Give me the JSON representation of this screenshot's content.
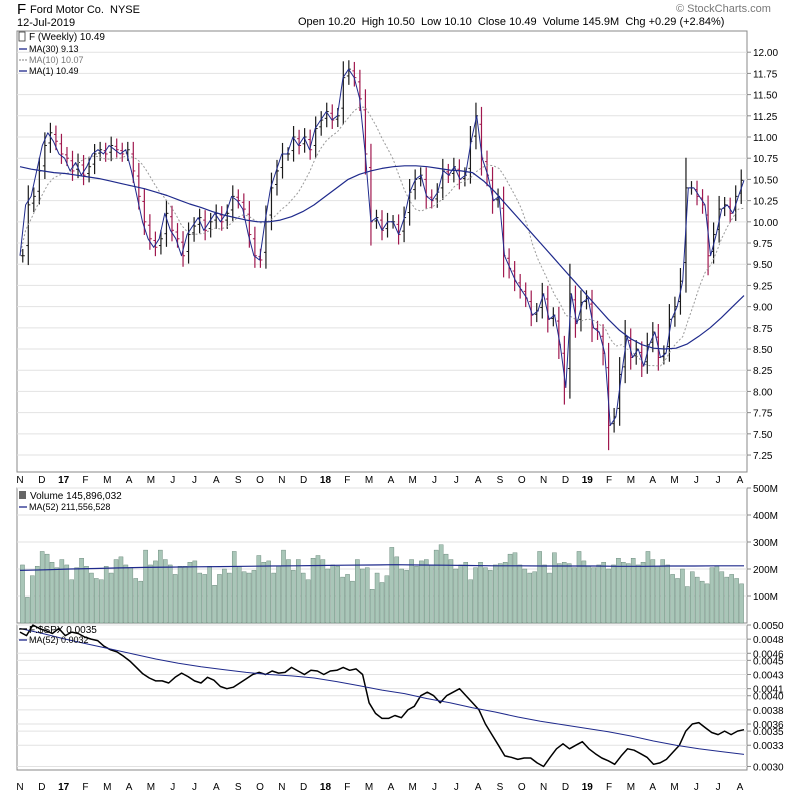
{
  "header": {
    "symbol": "F",
    "company": "Ford Motor Co.",
    "exchange": "NYSE",
    "date": "12-Jul-2019",
    "watermark": "© StockCharts.com",
    "open_label": "Open",
    "open": "10.20",
    "high_label": "High",
    "high": "10.50",
    "low_label": "Low",
    "low": "10.10",
    "close_label": "Close",
    "close": "10.49",
    "volume_label": "Volume",
    "volume": "145.9M",
    "chg_label": "Chg",
    "chg": "+0.29 (+2.84%)"
  },
  "colors": {
    "up": "#1a1a1a",
    "down": "#a0184e",
    "ma": "#1f2a8c",
    "ma_dotted": "#9a9a9a",
    "volume": "#a9c6b8",
    "volume_edge": "#5c7d6e",
    "grid": "#e2e2e2",
    "ratio": "#000000"
  },
  "chart_data": [
    {
      "type": "ohlc",
      "title": "F (Weekly) 10.49",
      "legend": [
        {
          "label": "MA(30) 9.13",
          "style": "solid"
        },
        {
          "label": "MA(10) 10.07",
          "style": "dotted"
        },
        {
          "label": "MA(1) 10.49",
          "style": "solid"
        }
      ],
      "ylim": [
        7.05,
        12.25
      ],
      "y_ticks": [
        "12.00",
        "11.75",
        "11.50",
        "11.25",
        "11.00",
        "10.75",
        "10.50",
        "10.25",
        "10.00",
        "9.75",
        "9.50",
        "9.25",
        "9.00",
        "8.75",
        "8.50",
        "8.25",
        "8.00",
        "7.75",
        "7.50",
        "7.25"
      ],
      "x_labels": [
        "N",
        "D",
        "17",
        "F",
        "M",
        "A",
        "M",
        "J",
        "J",
        "A",
        "S",
        "O",
        "N",
        "D",
        "18",
        "F",
        "M",
        "A",
        "M",
        "J",
        "J",
        "A",
        "S",
        "O",
        "N",
        "D",
        "19",
        "F",
        "M",
        "A",
        "M",
        "J",
        "J",
        "A"
      ],
      "ma1_weekly_close": [
        9.6,
        10.2,
        10.3,
        10.6,
        10.9,
        11.05,
        10.95,
        10.8,
        10.75,
        10.6,
        10.7,
        10.55,
        10.65,
        10.8,
        10.85,
        10.8,
        10.9,
        10.85,
        10.8,
        10.85,
        10.6,
        10.3,
        10.0,
        9.8,
        9.7,
        9.8,
        10.1,
        9.9,
        9.8,
        9.6,
        9.85,
        9.95,
        10.05,
        9.9,
        10.0,
        10.1,
        10.0,
        10.1,
        10.3,
        10.25,
        10.15,
        9.85,
        9.6,
        9.55,
        10.0,
        10.4,
        10.6,
        10.8,
        10.8,
        11.0,
        10.9,
        11.0,
        10.85,
        11.1,
        11.2,
        11.3,
        11.2,
        11.25,
        11.7,
        11.8,
        11.7,
        11.45,
        10.8,
        10.0,
        10.05,
        9.9,
        10.0,
        10.0,
        9.85,
        10.05,
        10.35,
        10.5,
        10.55,
        10.3,
        10.25,
        10.35,
        10.6,
        10.55,
        10.65,
        10.5,
        10.55,
        10.95,
        11.25,
        10.75,
        10.55,
        10.25,
        10.3,
        9.6,
        9.45,
        9.3,
        9.2,
        9.1,
        8.9,
        8.95,
        9.15,
        8.85,
        8.9,
        8.55,
        8.05,
        9.15,
        8.8,
        9.05,
        9.1,
        8.75,
        8.7,
        8.45,
        7.6,
        7.7,
        8.2,
        8.65,
        8.4,
        8.5,
        8.3,
        8.55,
        8.7,
        8.4,
        8.45,
        8.85,
        9.0,
        9.3,
        10.4,
        10.4,
        10.3,
        10.2,
        9.6,
        9.85,
        10.15,
        10.2,
        10.1,
        10.3,
        10.49
      ],
      "ma30": [
        10.65,
        10.62,
        10.6,
        10.58,
        10.57,
        10.55,
        10.53,
        10.51,
        10.48,
        10.45,
        10.42,
        10.39,
        10.35,
        10.31,
        10.26,
        10.21,
        10.17,
        10.12,
        10.08,
        10.05,
        10.02,
        10.0,
        10.0,
        10.02,
        10.06,
        10.12,
        10.2,
        10.3,
        10.4,
        10.5,
        10.56,
        10.6,
        10.63,
        10.65,
        10.66,
        10.66,
        10.65,
        10.63,
        10.61,
        10.6,
        10.58,
        10.48,
        10.35,
        10.2,
        10.05,
        9.9,
        9.75,
        9.6,
        9.45,
        9.3,
        9.15,
        9.0,
        8.85,
        8.72,
        8.62,
        8.55,
        8.51,
        8.5,
        8.51,
        8.56,
        8.65,
        8.75,
        8.87,
        9.0,
        9.13
      ]
    },
    {
      "type": "bar",
      "title": "Volume 145,896,032",
      "legend": [
        {
          "label": "MA(52) 211,556,528",
          "style": "solid"
        }
      ],
      "ylim": [
        0,
        500
      ],
      "y_ticks": [
        "500M",
        "400M",
        "300M",
        "200M",
        "100M"
      ],
      "values": [
        215,
        95,
        175,
        210,
        265,
        255,
        225,
        205,
        235,
        215,
        160,
        205,
        240,
        210,
        185,
        165,
        160,
        210,
        185,
        235,
        245,
        215,
        205,
        165,
        155,
        270,
        215,
        230,
        270,
        235,
        215,
        180,
        210,
        210,
        225,
        230,
        185,
        180,
        210,
        140,
        180,
        200,
        185,
        265,
        210,
        190,
        185,
        195,
        250,
        225,
        230,
        185,
        210,
        270,
        235,
        195,
        235,
        185,
        160,
        240,
        250,
        235,
        200,
        215,
        210,
        170,
        180,
        155,
        235,
        200,
        205,
        125,
        185,
        150,
        175,
        280,
        245,
        200,
        195,
        235,
        210,
        230,
        235,
        215,
        270,
        290,
        255,
        235,
        200,
        215,
        225,
        160,
        205,
        225,
        205,
        195,
        215,
        220,
        225,
        255,
        260,
        215,
        200,
        185,
        190,
        265,
        215,
        185,
        260,
        220,
        225,
        220,
        205,
        265,
        230,
        210,
        205,
        215,
        225,
        200,
        215,
        240,
        225,
        220,
        240,
        215,
        225,
        265,
        235,
        210,
        235,
        215,
        180,
        165,
        200,
        135,
        190,
        170,
        155,
        145,
        205,
        210,
        190,
        170,
        180,
        165,
        145
      ],
      "ma52": [
        195,
        197,
        200,
        202,
        204,
        206,
        207,
        208,
        209,
        210,
        211,
        212,
        213,
        214,
        215,
        216,
        215,
        214,
        213,
        212,
        212,
        211,
        211,
        211,
        210,
        210,
        211,
        211,
        212,
        212
      ]
    },
    {
      "type": "line",
      "title": "F:$SPX 0.0035",
      "legend": [
        {
          "label": "MA(52) 0.0032",
          "style": "solid"
        }
      ],
      "ylim": [
        0.00295,
        0.005
      ],
      "y_ticks": [
        "0.0050",
        "0.0048",
        "0.0046",
        "0.0045",
        "0.0043",
        "0.0041",
        "0.0040",
        "0.0038",
        "0.0036",
        "0.0035",
        "0.0033",
        "0.0030"
      ],
      "ratio": [
        0.0049,
        0.00485,
        0.005,
        0.00495,
        0.00492,
        0.00488,
        0.00495,
        0.00485,
        0.0049,
        0.00488,
        0.00483,
        0.0048,
        0.00478,
        0.0047,
        0.00465,
        0.00462,
        0.00456,
        0.00449,
        0.0044,
        0.00431,
        0.00425,
        0.00421,
        0.00421,
        0.00418,
        0.00426,
        0.00432,
        0.00427,
        0.00421,
        0.00418,
        0.00426,
        0.00422,
        0.00413,
        0.0041,
        0.00412,
        0.00418,
        0.00424,
        0.0043,
        0.00433,
        0.0043,
        0.00435,
        0.00432,
        0.00433,
        0.0044,
        0.00435,
        0.0043,
        0.00436,
        0.00435,
        0.0043,
        0.00435,
        0.00436,
        0.0044,
        0.00436,
        0.00438,
        0.0043,
        0.0039,
        0.00375,
        0.00368,
        0.00368,
        0.00372,
        0.00369,
        0.0038,
        0.00385,
        0.004,
        0.00405,
        0.004,
        0.0039,
        0.004,
        0.00405,
        0.0041,
        0.004,
        0.0039,
        0.0038,
        0.0036,
        0.00345,
        0.0033,
        0.00315,
        0.00313,
        0.0031,
        0.00312,
        0.00312,
        0.00305,
        0.003,
        0.00313,
        0.00325,
        0.00332,
        0.00325,
        0.0033,
        0.00335,
        0.00325,
        0.00318,
        0.00312,
        0.00308,
        0.00303,
        0.00315,
        0.00325,
        0.00323,
        0.00318,
        0.00313,
        0.00303,
        0.00305,
        0.0031,
        0.0032,
        0.0033,
        0.0035,
        0.0036,
        0.00362,
        0.00355,
        0.00348,
        0.00345,
        0.0035,
        0.00345,
        0.0035,
        0.00352
      ],
      "ma52": [
        0.00495,
        0.00488,
        0.0048,
        0.00473,
        0.00466,
        0.00459,
        0.00452,
        0.00446,
        0.00441,
        0.00437,
        0.00433,
        0.0043,
        0.00428,
        0.00425,
        0.0042,
        0.00414,
        0.00408,
        0.00403,
        0.00396,
        0.0039,
        0.00383,
        0.00377,
        0.0037,
        0.00364,
        0.00359,
        0.00354,
        0.00349,
        0.00343,
        0.00336,
        0.0033,
        0.00325,
        0.00321,
        0.00317
      ]
    }
  ]
}
